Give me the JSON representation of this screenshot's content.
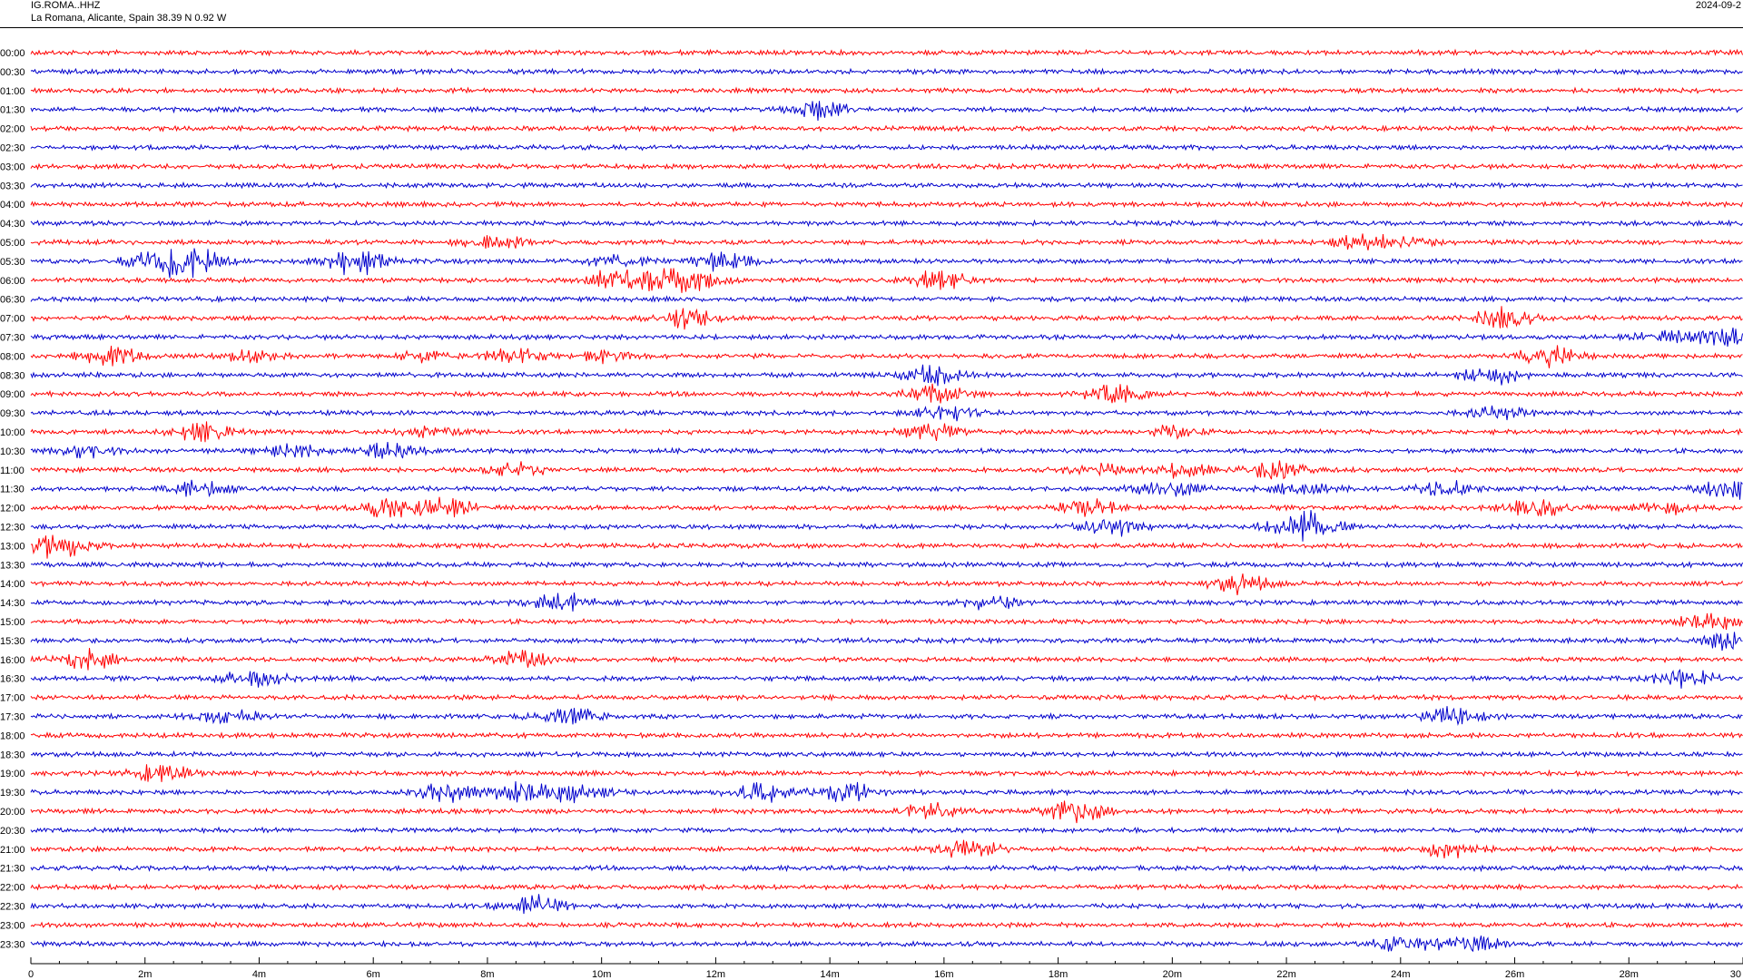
{
  "header": {
    "station": "IG.ROMA..HHZ",
    "location": "La Romana, Alicante, Spain  38.39 N 0.92 W",
    "date": "2024-09-2"
  },
  "colors": {
    "trace_a": "#ff0000",
    "trace_b": "#0000cc",
    "axis": "#000000"
  },
  "chart_data": {
    "type": "line",
    "title": "",
    "xlabel": "",
    "ylabel": "",
    "xlim": [
      0,
      30
    ],
    "x_unit": "minutes",
    "x_ticks": [
      "0",
      "2m",
      "4m",
      "6m",
      "8m",
      "10m",
      "12m",
      "14m",
      "16m",
      "18m",
      "20m",
      "22m",
      "24m",
      "26m",
      "28m",
      "30"
    ],
    "rows": [
      {
        "label": "00:00",
        "color": "#ff0000",
        "bursts": []
      },
      {
        "label": "00:30",
        "color": "#0000cc",
        "bursts": []
      },
      {
        "label": "01:00",
        "color": "#ff0000",
        "bursts": []
      },
      {
        "label": "01:30",
        "color": "#0000cc",
        "bursts": [
          [
            13.8,
            3.0
          ]
        ]
      },
      {
        "label": "02:00",
        "color": "#ff0000",
        "bursts": []
      },
      {
        "label": "02:30",
        "color": "#0000cc",
        "bursts": []
      },
      {
        "label": "03:00",
        "color": "#ff0000",
        "bursts": []
      },
      {
        "label": "03:30",
        "color": "#0000cc",
        "bursts": []
      },
      {
        "label": "04:00",
        "color": "#ff0000",
        "bursts": []
      },
      {
        "label": "04:30",
        "color": "#0000cc",
        "bursts": []
      },
      {
        "label": "05:00",
        "color": "#ff0000",
        "bursts": [
          [
            8.1,
            2.5
          ],
          [
            23.2,
            1.8
          ],
          [
            24.0,
            2.2
          ]
        ]
      },
      {
        "label": "05:30",
        "color": "#0000cc",
        "bursts": [
          [
            2.2,
            3.2
          ],
          [
            2.8,
            4.5
          ],
          [
            5.7,
            4.5
          ],
          [
            10.3,
            2.0
          ],
          [
            12.1,
            3.0
          ]
        ]
      },
      {
        "label": "06:00",
        "color": "#ff0000",
        "bursts": [
          [
            10.2,
            3.0
          ],
          [
            11.0,
            3.0
          ],
          [
            11.6,
            3.2
          ],
          [
            15.9,
            3.0
          ]
        ]
      },
      {
        "label": "06:30",
        "color": "#0000cc",
        "bursts": []
      },
      {
        "label": "07:00",
        "color": "#ff0000",
        "bursts": [
          [
            11.4,
            3.5
          ],
          [
            25.8,
            3.5
          ]
        ]
      },
      {
        "label": "07:30",
        "color": "#0000cc",
        "bursts": [
          [
            28.6,
            2.0
          ],
          [
            29.7,
            3.5
          ]
        ]
      },
      {
        "label": "08:00",
        "color": "#ff0000",
        "bursts": [
          [
            1.4,
            3.2
          ],
          [
            3.8,
            2.0
          ],
          [
            6.8,
            2.0
          ],
          [
            8.5,
            2.5
          ],
          [
            10.1,
            2.0
          ],
          [
            26.6,
            3.2
          ]
        ]
      },
      {
        "label": "08:30",
        "color": "#0000cc",
        "bursts": [
          [
            15.8,
            3.0
          ],
          [
            25.6,
            3.0
          ]
        ]
      },
      {
        "label": "09:00",
        "color": "#ff0000",
        "bursts": [
          [
            15.9,
            3.0
          ],
          [
            19.0,
            3.0
          ]
        ]
      },
      {
        "label": "09:30",
        "color": "#0000cc",
        "bursts": [
          [
            16.0,
            3.0
          ],
          [
            25.7,
            2.2
          ]
        ]
      },
      {
        "label": "10:00",
        "color": "#ff0000",
        "bursts": [
          [
            3.0,
            3.0
          ],
          [
            7.0,
            2.0
          ],
          [
            15.8,
            3.0
          ],
          [
            20.0,
            2.0
          ]
        ]
      },
      {
        "label": "10:30",
        "color": "#0000cc",
        "bursts": [
          [
            1.0,
            2.0
          ],
          [
            4.6,
            2.0
          ],
          [
            6.3,
            3.0
          ]
        ]
      },
      {
        "label": "11:00",
        "color": "#ff0000",
        "bursts": [
          [
            8.5,
            2.5
          ],
          [
            18.7,
            2.5
          ],
          [
            20.2,
            2.5
          ],
          [
            21.9,
            3.8
          ]
        ]
      },
      {
        "label": "11:30",
        "color": "#0000cc",
        "bursts": [
          [
            3.0,
            3.0
          ],
          [
            19.9,
            3.0
          ],
          [
            22.3,
            2.2
          ],
          [
            24.8,
            3.0
          ],
          [
            29.8,
            3.5
          ]
        ]
      },
      {
        "label": "12:00",
        "color": "#ff0000",
        "bursts": [
          [
            6.3,
            3.8
          ],
          [
            7.3,
            3.0
          ],
          [
            18.5,
            3.0
          ],
          [
            26.4,
            2.8
          ],
          [
            28.6,
            2.0
          ]
        ]
      },
      {
        "label": "12:30",
        "color": "#0000cc",
        "bursts": [
          [
            18.9,
            3.0
          ],
          [
            22.1,
            3.0
          ],
          [
            22.5,
            3.0
          ]
        ]
      },
      {
        "label": "13:00",
        "color": "#ff0000",
        "bursts": [
          [
            0.5,
            4.2
          ]
        ]
      },
      {
        "label": "13:30",
        "color": "#0000cc",
        "bursts": []
      },
      {
        "label": "14:00",
        "color": "#ff0000",
        "bursts": [
          [
            21.2,
            3.0
          ]
        ]
      },
      {
        "label": "14:30",
        "color": "#0000cc",
        "bursts": [
          [
            9.3,
            3.0
          ],
          [
            16.8,
            2.0
          ]
        ]
      },
      {
        "label": "15:00",
        "color": "#ff0000",
        "bursts": [
          [
            29.4,
            2.8
          ]
        ]
      },
      {
        "label": "15:30",
        "color": "#0000cc",
        "bursts": [
          [
            29.8,
            3.0
          ]
        ]
      },
      {
        "label": "16:00",
        "color": "#ff0000",
        "bursts": [
          [
            1.0,
            3.0
          ],
          [
            8.6,
            2.8
          ]
        ]
      },
      {
        "label": "16:30",
        "color": "#0000cc",
        "bursts": [
          [
            3.9,
            2.8
          ],
          [
            29.0,
            3.0
          ]
        ]
      },
      {
        "label": "17:00",
        "color": "#ff0000",
        "bursts": []
      },
      {
        "label": "17:30",
        "color": "#0000cc",
        "bursts": [
          [
            3.4,
            3.0
          ],
          [
            9.4,
            3.0
          ],
          [
            24.9,
            3.0
          ]
        ]
      },
      {
        "label": "18:00",
        "color": "#ff0000",
        "bursts": []
      },
      {
        "label": "18:30",
        "color": "#0000cc",
        "bursts": []
      },
      {
        "label": "19:00",
        "color": "#ff0000",
        "bursts": [
          [
            2.3,
            3.0
          ]
        ]
      },
      {
        "label": "19:30",
        "color": "#0000cc",
        "bursts": [
          [
            7.3,
            3.0
          ],
          [
            8.6,
            3.5
          ],
          [
            9.6,
            3.2
          ],
          [
            12.8,
            3.5
          ],
          [
            14.3,
            3.0
          ]
        ]
      },
      {
        "label": "20:00",
        "color": "#ff0000",
        "bursts": [
          [
            15.8,
            2.5
          ],
          [
            18.3,
            3.8
          ]
        ]
      },
      {
        "label": "20:30",
        "color": "#0000cc",
        "bursts": []
      },
      {
        "label": "21:00",
        "color": "#ff0000",
        "bursts": [
          [
            16.4,
            3.8
          ],
          [
            24.8,
            2.8
          ]
        ]
      },
      {
        "label": "21:30",
        "color": "#0000cc",
        "bursts": []
      },
      {
        "label": "22:00",
        "color": "#ff0000",
        "bursts": []
      },
      {
        "label": "22:30",
        "color": "#0000cc",
        "bursts": [
          [
            8.8,
            3.5
          ]
        ]
      },
      {
        "label": "23:00",
        "color": "#ff0000",
        "bursts": []
      },
      {
        "label": "23:30",
        "color": "#0000cc",
        "bursts": [
          [
            24.0,
            2.5
          ],
          [
            25.2,
            3.0
          ]
        ]
      }
    ]
  }
}
